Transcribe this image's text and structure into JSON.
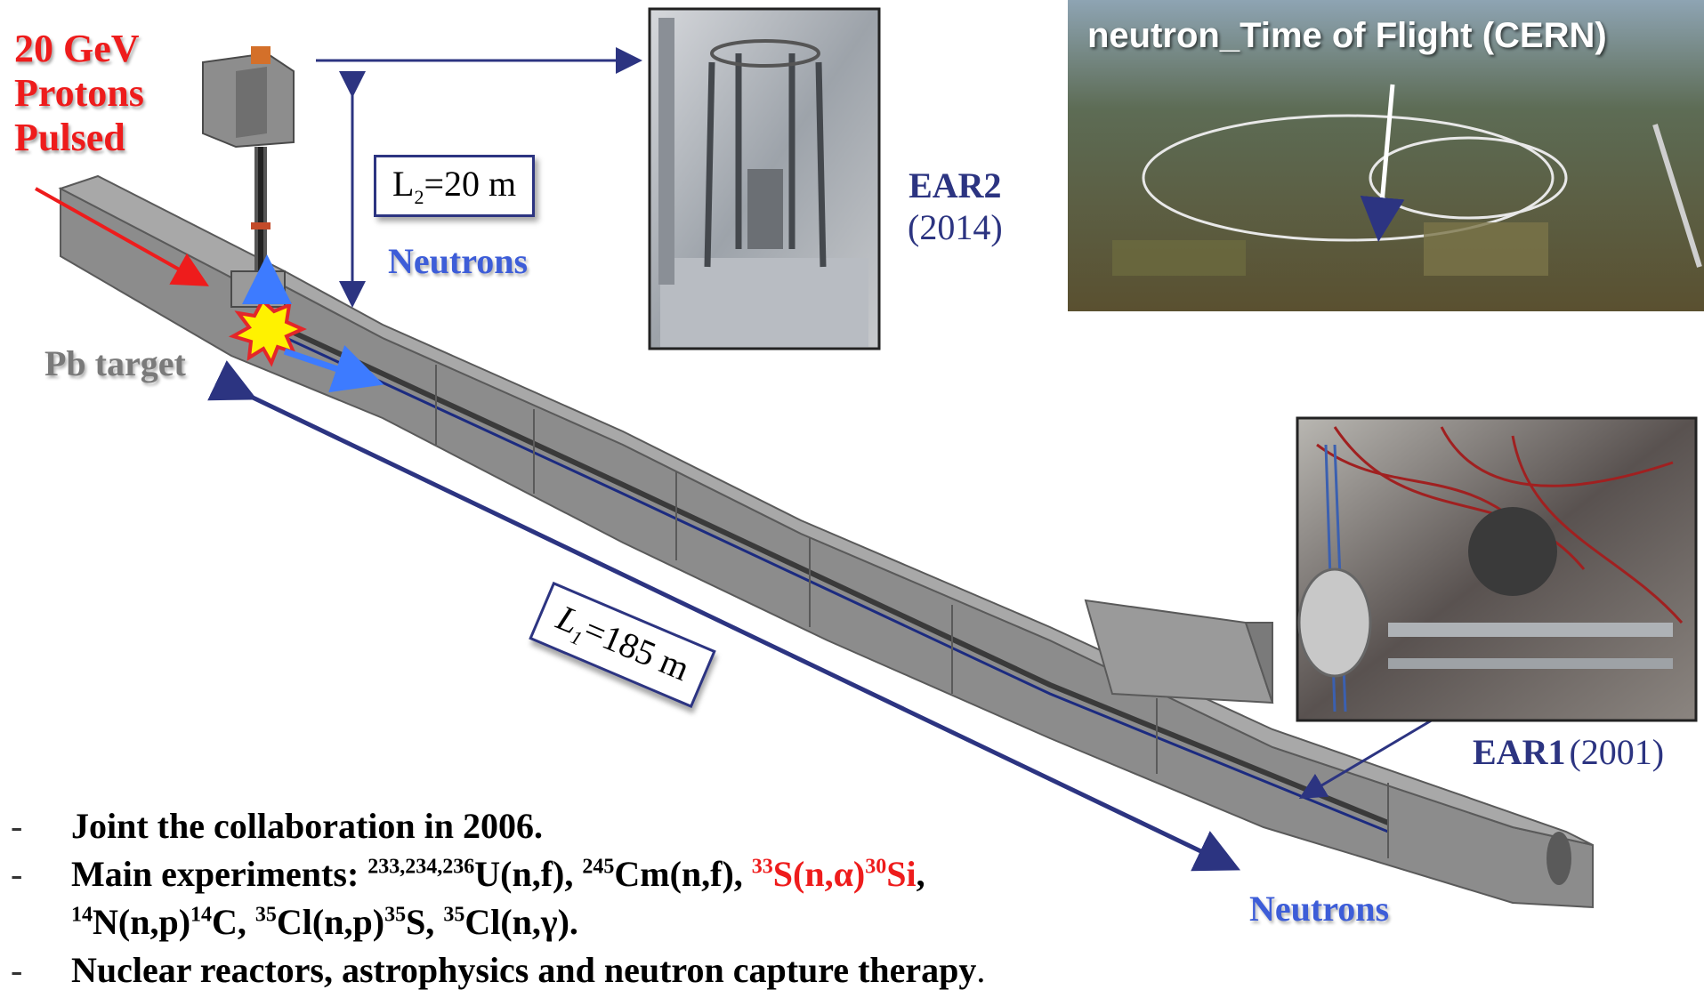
{
  "beam": {
    "line1": "20 GeV",
    "line2": "Protons",
    "line3": "Pulsed"
  },
  "target_label": "Pb target",
  "l2_label": {
    "main": "L",
    "sub": "2",
    "rest": "=20 m"
  },
  "l1_label": {
    "main": "L",
    "sub": "1",
    "rest": "=185 m"
  },
  "neutrons_top": "Neutrons",
  "neutrons_bottom": "Neutrons",
  "ear2": {
    "name": "EAR2",
    "year": "(2014)"
  },
  "ear1": {
    "name": "EAR1",
    "year": "(2001)"
  },
  "aerial_title": "neutron_Time of Flight (CERN)",
  "bullets": {
    "b1": "Joint the collaboration in 2006.",
    "b2": {
      "prefix": "Main experiments: ",
      "u_sup": "233,234,236",
      "u_txt": "U(n,f), ",
      "cm_sup": "245",
      "cm_txt": "Cm(n,f), ",
      "s_sup": "33",
      "s_txt": "S(n,α)",
      "si_sup": "30",
      "si_txt": "Si",
      "comma": ","
    },
    "b2b": {
      "n_sup": "14",
      "n_txt": "N(n,p)",
      "c_sup": "14",
      "c_txt": "C, ",
      "cl_sup": "35",
      "cl_txt": "Cl(n,p)",
      "s35_sup": "35",
      "s35_txt": "S, ",
      "cl2_sup": "35",
      "cl2_txt": "Cl(n,γ)."
    },
    "b3": "Nuclear reactors, astrophysics and neutron capture therapy",
    "b3_end": "."
  },
  "colors": {
    "navy": "#2c3481",
    "red": "#ee1c1c",
    "blue": "#3d5dd8",
    "tunnel": "#8c8c8c"
  }
}
